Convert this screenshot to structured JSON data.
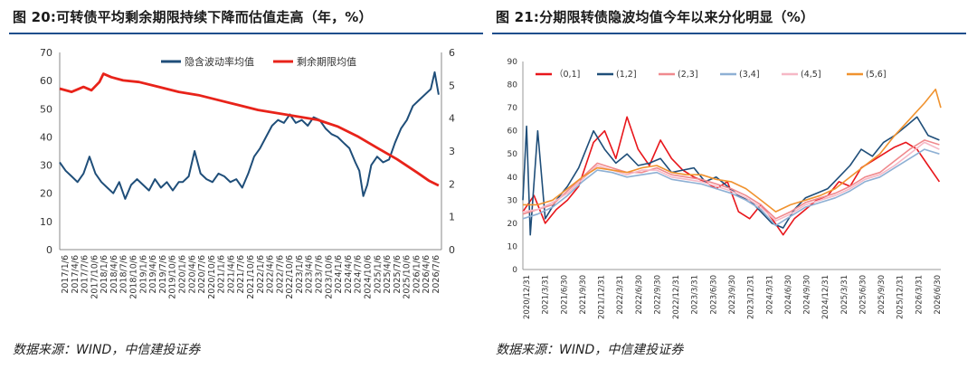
{
  "left_panel": {
    "title": "图 20:可转债平均剩余期限持续下降而估值走高（年，%）",
    "source": "数据来源：WIND，中信建投证券"
  },
  "right_panel": {
    "title": "图 21:分期限转债隐波均值今年以来分化明显（%）",
    "source": "数据来源：WIND，中信建投证券"
  },
  "chart_data": [
    {
      "type": "line",
      "x_tick_labels": [
        "2017/1/6",
        "2017/4/6",
        "2017/7/6",
        "2017/10/6",
        "2018/1/6",
        "2018/4/6",
        "2018/7/6",
        "2018/10/6",
        "2019/1/6",
        "2019/4/6",
        "2019/7/6",
        "2019/10/6",
        "2020/1/6",
        "2020/4/6",
        "2020/7/6",
        "2020/10/6",
        "2021/1/6",
        "2021/4/6",
        "2021/7/6",
        "2021/10/6",
        "2022/1/6",
        "2022/4/6",
        "2022/7/6",
        "2022/10/6",
        "2023/1/6",
        "2023/4/6",
        "2023/7/6",
        "2023/10/6",
        "2024/1/6",
        "2024/4/6",
        "2024/7/6",
        "2024/10/6",
        "2025/1/6",
        "2025/4/6",
        "2025/7/6",
        "2025/10/6",
        "2026/1/6",
        "2026/4/6",
        "2026/7/6"
      ],
      "y_left": {
        "ticks": [
          0,
          10,
          20,
          30,
          40,
          50,
          60,
          70
        ],
        "range": [
          0,
          70
        ]
      },
      "y_right": {
        "ticks": [
          0,
          1,
          2,
          3,
          4,
          5,
          6
        ],
        "range": [
          0,
          6
        ]
      },
      "legend_position": "top-center",
      "series": [
        {
          "name": "隐含波动率均值",
          "axis": "left",
          "color": "#1f4e79",
          "x": [
            2017.0,
            2017.15,
            2017.3,
            2017.45,
            2017.6,
            2017.75,
            2017.9,
            2018.05,
            2018.2,
            2018.35,
            2018.5,
            2018.65,
            2018.8,
            2018.95,
            2019.1,
            2019.25,
            2019.4,
            2019.55,
            2019.7,
            2019.85,
            2020.0,
            2020.1,
            2020.25,
            2020.4,
            2020.55,
            2020.7,
            2020.85,
            2021.0,
            2021.15,
            2021.3,
            2021.45,
            2021.6,
            2021.75,
            2021.9,
            2022.05,
            2022.2,
            2022.35,
            2022.5,
            2022.65,
            2022.8,
            2022.95,
            2023.1,
            2023.25,
            2023.4,
            2023.55,
            2023.7,
            2023.85,
            2024.0,
            2024.15,
            2024.3,
            2024.45,
            2024.55,
            2024.65,
            2024.75,
            2024.85,
            2025.0,
            2025.15,
            2025.3,
            2025.45,
            2025.6,
            2025.75,
            2025.9,
            2026.05,
            2026.2,
            2026.35,
            2026.45,
            2026.55
          ],
          "y": [
            31,
            28,
            26,
            24,
            27,
            33,
            27,
            24,
            22,
            20,
            24,
            18,
            23,
            25,
            23,
            21,
            25,
            22,
            24,
            21,
            24,
            24,
            26,
            35,
            27,
            25,
            24,
            27,
            26,
            24,
            25,
            22,
            27,
            33,
            36,
            40,
            44,
            46,
            45,
            48,
            45,
            46,
            44,
            47,
            46,
            43,
            41,
            40,
            38,
            36,
            31,
            28,
            19,
            23,
            30,
            33,
            31,
            32,
            38,
            43,
            46,
            51,
            53,
            55,
            57,
            63,
            55
          ]
        },
        {
          "name": "剩余期限均值",
          "axis": "right",
          "color": "#e8231a",
          "x": [
            2017.0,
            2017.3,
            2017.6,
            2017.8,
            2018.0,
            2018.1,
            2018.3,
            2018.6,
            2019.0,
            2019.5,
            2020.0,
            2020.5,
            2021.0,
            2021.5,
            2022.0,
            2022.5,
            2023.0,
            2023.5,
            2024.0,
            2024.5,
            2025.0,
            2025.5,
            2026.0,
            2026.3,
            2026.55
          ],
          "y": [
            4.9,
            4.8,
            4.95,
            4.85,
            5.1,
            5.35,
            5.25,
            5.15,
            5.1,
            4.95,
            4.8,
            4.7,
            4.55,
            4.4,
            4.25,
            4.15,
            4.05,
            3.95,
            3.75,
            3.45,
            3.1,
            2.75,
            2.35,
            2.1,
            1.95
          ]
        }
      ]
    },
    {
      "type": "line",
      "x_tick_labels": [
        "2020/12/31",
        "2021/3/31",
        "2021/6/30",
        "2021/9/30",
        "2021/12/31",
        "2022/3/31",
        "2022/6/30",
        "2022/9/30",
        "2022/12/31",
        "2023/3/31",
        "2023/6/30",
        "2023/9/30",
        "2023/12/31",
        "2024/3/31",
        "2024/6/30",
        "2024/9/30",
        "2024/12/31",
        "2025/3/31",
        "2025/6/30",
        "2025/9/30",
        "2025/12/31",
        "2026/3/31",
        "2026/6/30"
      ],
      "y_axis": {
        "ticks": [
          0,
          10,
          20,
          30,
          40,
          50,
          60,
          70,
          80,
          90
        ],
        "range": [
          0,
          90
        ]
      },
      "legend_position": "top",
      "series": [
        {
          "name": "（0,1]",
          "color": "#e8161b",
          "x": [
            2021.0,
            2021.15,
            2021.3,
            2021.45,
            2021.6,
            2021.75,
            2021.95,
            2022.1,
            2022.25,
            2022.4,
            2022.55,
            2022.7,
            2022.85,
            2023.0,
            2023.15,
            2023.3,
            2023.45,
            2023.6,
            2023.75,
            2023.9,
            2024.05,
            2024.2,
            2024.35,
            2024.5,
            2024.65,
            2024.8,
            2024.95,
            2025.1,
            2025.25,
            2025.4,
            2025.55,
            2025.7,
            2025.85,
            2026.0,
            2026.15,
            2026.3,
            2026.45,
            2026.6
          ],
          "y": [
            25,
            32,
            20,
            26,
            30,
            36,
            55,
            60,
            48,
            66,
            52,
            45,
            56,
            48,
            43,
            40,
            38,
            35,
            38,
            25,
            22,
            28,
            22,
            15,
            22,
            26,
            30,
            32,
            38,
            36,
            44,
            47,
            50,
            53,
            55,
            52,
            45,
            38
          ]
        },
        {
          "name": "(1,2]",
          "color": "#1f4e79",
          "x": [
            2021.0,
            2021.05,
            2021.1,
            2021.2,
            2021.3,
            2021.45,
            2021.6,
            2021.75,
            2021.95,
            2022.1,
            2022.25,
            2022.4,
            2022.55,
            2022.7,
            2022.85,
            2023.0,
            2023.15,
            2023.3,
            2023.45,
            2023.6,
            2023.75,
            2023.9,
            2024.05,
            2024.2,
            2024.35,
            2024.5,
            2024.65,
            2024.8,
            2024.95,
            2025.1,
            2025.25,
            2025.4,
            2025.55,
            2025.7,
            2025.85,
            2026.0,
            2026.15,
            2026.3,
            2026.45,
            2026.6
          ],
          "y": [
            30,
            62,
            15,
            60,
            22,
            30,
            36,
            44,
            60,
            52,
            46,
            50,
            45,
            46,
            48,
            42,
            43,
            44,
            38,
            40,
            36,
            32,
            30,
            25,
            20,
            18,
            26,
            31,
            33,
            35,
            40,
            45,
            52,
            49,
            55,
            58,
            62,
            66,
            58,
            56
          ]
        },
        {
          "name": "(2,3]",
          "color": "#f08a8e",
          "x": [
            2021.0,
            2021.2,
            2021.4,
            2021.6,
            2021.8,
            2022.0,
            2022.2,
            2022.4,
            2022.6,
            2022.8,
            2023.0,
            2023.2,
            2023.4,
            2023.6,
            2023.8,
            2024.0,
            2024.2,
            2024.4,
            2024.6,
            2024.8,
            2025.0,
            2025.2,
            2025.4,
            2025.6,
            2025.8,
            2026.0,
            2026.2,
            2026.4,
            2026.6
          ],
          "y": [
            24,
            26,
            28,
            34,
            40,
            46,
            44,
            42,
            42,
            44,
            41,
            40,
            39,
            37,
            35,
            32,
            28,
            22,
            25,
            29,
            31,
            33,
            36,
            40,
            42,
            47,
            52,
            56,
            54
          ]
        },
        {
          "name": "(3,4]",
          "color": "#8eb0d4",
          "x": [
            2021.0,
            2021.2,
            2021.4,
            2021.6,
            2021.8,
            2022.0,
            2022.2,
            2022.4,
            2022.6,
            2022.8,
            2023.0,
            2023.2,
            2023.4,
            2023.6,
            2023.8,
            2024.0,
            2024.2,
            2024.4,
            2024.6,
            2024.8,
            2025.0,
            2025.2,
            2025.4,
            2025.6,
            2025.8,
            2026.0,
            2026.2,
            2026.4,
            2026.6
          ],
          "y": [
            22,
            24,
            27,
            32,
            38,
            43,
            42,
            40,
            41,
            42,
            39,
            38,
            37,
            35,
            33,
            30,
            26,
            19,
            23,
            27,
            29,
            31,
            34,
            38,
            40,
            44,
            48,
            52,
            50
          ]
        },
        {
          "name": "(4,5]",
          "color": "#f6b8c6",
          "x": [
            2021.0,
            2021.2,
            2021.4,
            2021.6,
            2021.8,
            2022.0,
            2022.2,
            2022.4,
            2022.6,
            2022.8,
            2023.0,
            2023.2,
            2023.4,
            2023.6,
            2023.8,
            2024.0,
            2024.2,
            2024.4,
            2024.6,
            2024.8,
            2025.0,
            2025.2,
            2025.4,
            2025.6,
            2025.8,
            2026.0,
            2026.2,
            2026.4,
            2026.6
          ],
          "y": [
            25,
            26,
            29,
            33,
            39,
            45,
            43,
            41,
            43,
            43,
            40,
            39,
            38,
            36,
            34,
            31,
            27,
            21,
            24,
            28,
            30,
            32,
            35,
            39,
            41,
            45,
            50,
            55,
            52
          ]
        },
        {
          "name": "(5,6]",
          "color": "#f0922e",
          "x": [
            2021.0,
            2021.2,
            2021.4,
            2021.6,
            2021.8,
            2022.0,
            2022.2,
            2022.4,
            2022.6,
            2022.8,
            2023.0,
            2023.2,
            2023.4,
            2023.6,
            2023.8,
            2024.0,
            2024.2,
            2024.4,
            2024.6,
            2024.8,
            2025.0,
            2025.2,
            2025.4,
            2025.6,
            2025.8,
            2026.0,
            2026.2,
            2026.4,
            2026.55,
            2026.62
          ],
          "y": [
            28,
            28,
            30,
            35,
            40,
            44,
            43,
            42,
            44,
            45,
            42,
            41,
            41,
            39,
            38,
            35,
            30,
            25,
            28,
            30,
            32,
            35,
            40,
            45,
            50,
            58,
            65,
            72,
            78,
            70
          ]
        }
      ]
    }
  ]
}
